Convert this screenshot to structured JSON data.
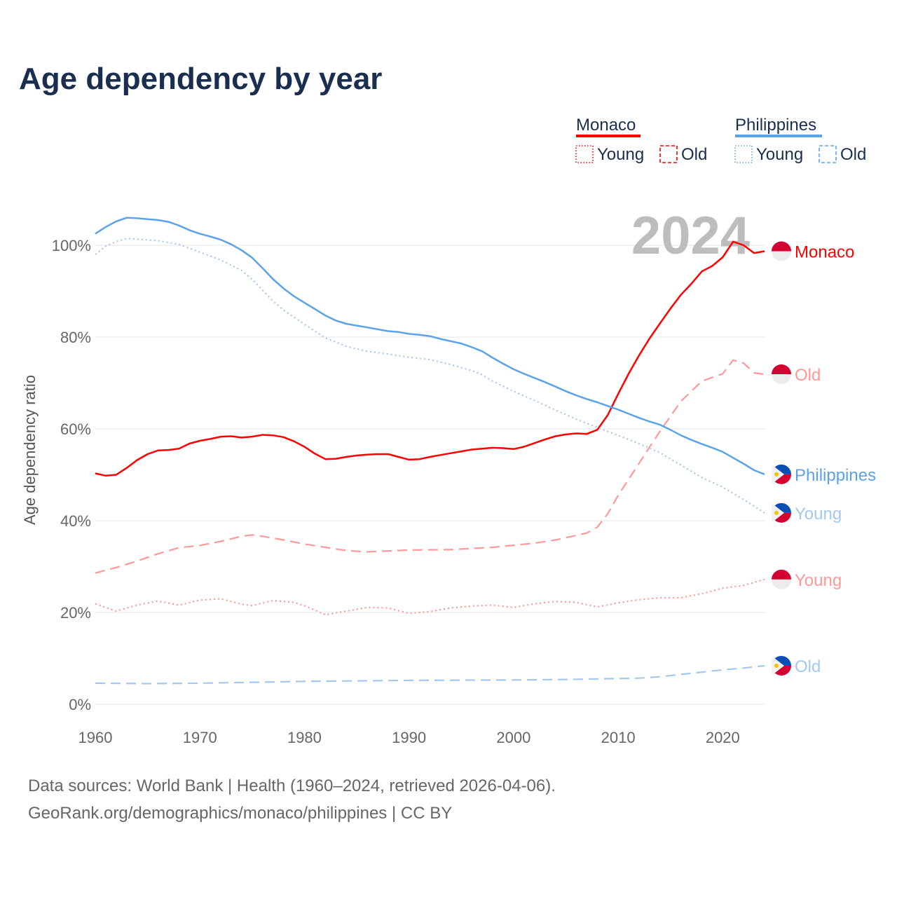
{
  "title": "Age dependency by year",
  "big_year": "2024",
  "legend": [
    {
      "country": "Monaco",
      "color": "#ff0000",
      "items": [
        "Young",
        "Old"
      ]
    },
    {
      "country": "Philippines",
      "color": "#5ba3e8",
      "items": [
        "Young",
        "Old"
      ]
    }
  ],
  "footer": {
    "line1": "Data sources: World Bank | Health (1960–2024, retrieved 2026-04-06).",
    "line2": "GeoRank.org/demographics/monaco/philippines | CC BY"
  },
  "chart_data": {
    "type": "line",
    "title": "Age dependency by year",
    "xlabel": "",
    "ylabel": "Age dependency ratio",
    "xlim": [
      1960,
      2024
    ],
    "ylim": [
      0,
      110
    ],
    "x_ticks": [
      "1960",
      "1970",
      "1980",
      "1990",
      "2000",
      "2010",
      "2020"
    ],
    "y_ticks": [
      "0%",
      "20%",
      "40%",
      "60%",
      "80%",
      "100%"
    ],
    "grid": true,
    "series": [
      {
        "name": "Monaco",
        "end_label": "Monaco",
        "color": "#ff0000",
        "style": "solid",
        "flag": "monaco",
        "points": [
          [
            1960,
            50.3
          ],
          [
            1961,
            49.8
          ],
          [
            1962,
            50
          ],
          [
            1963,
            51.5
          ],
          [
            1964,
            53.2
          ],
          [
            1965,
            54.5
          ],
          [
            1966,
            55.3
          ],
          [
            1967,
            55.4
          ],
          [
            1968,
            55.7
          ],
          [
            1969,
            56.8
          ],
          [
            1970,
            57.4
          ],
          [
            1971,
            57.8
          ],
          [
            1972,
            58.3
          ],
          [
            1973,
            58.4
          ],
          [
            1974,
            58.1
          ],
          [
            1975,
            58.3
          ],
          [
            1976,
            58.7
          ],
          [
            1977,
            58.6
          ],
          [
            1978,
            58.2
          ],
          [
            1979,
            57.3
          ],
          [
            1980,
            56.1
          ],
          [
            1981,
            54.6
          ],
          [
            1982,
            53.4
          ],
          [
            1983,
            53.5
          ],
          [
            1984,
            53.9
          ],
          [
            1985,
            54.2
          ],
          [
            1986,
            54.4
          ],
          [
            1987,
            54.5
          ],
          [
            1988,
            54.5
          ],
          [
            1989,
            53.9
          ],
          [
            1990,
            53.3
          ],
          [
            1991,
            53.4
          ],
          [
            1992,
            53.9
          ],
          [
            1993,
            54.3
          ],
          [
            1994,
            54.7
          ],
          [
            1995,
            55.1
          ],
          [
            1996,
            55.5
          ],
          [
            1997,
            55.7
          ],
          [
            1998,
            55.9
          ],
          [
            1999,
            55.8
          ],
          [
            2000,
            55.6
          ],
          [
            2001,
            56.1
          ],
          [
            2002,
            56.9
          ],
          [
            2003,
            57.7
          ],
          [
            2004,
            58.4
          ],
          [
            2005,
            58.8
          ],
          [
            2006,
            59
          ],
          [
            2007,
            58.9
          ],
          [
            2008,
            59.8
          ],
          [
            2009,
            63
          ],
          [
            2010,
            67.6
          ],
          [
            2011,
            72
          ],
          [
            2012,
            76
          ],
          [
            2013,
            79.7
          ],
          [
            2014,
            83
          ],
          [
            2015,
            86.2
          ],
          [
            2016,
            89.2
          ],
          [
            2017,
            91.6
          ],
          [
            2018,
            94.3
          ],
          [
            2019,
            95.5
          ],
          [
            2020,
            97.4
          ],
          [
            2021,
            100.8
          ],
          [
            2022,
            100
          ],
          [
            2023,
            98.3
          ],
          [
            2024,
            98.7
          ]
        ]
      },
      {
        "name": "Monaco Old",
        "end_label": "Old",
        "color": "#ff9999",
        "style": "dashed",
        "flag": "monaco",
        "points": [
          [
            1960,
            28.6
          ],
          [
            1962,
            29.8
          ],
          [
            1964,
            31.2
          ],
          [
            1966,
            32.8
          ],
          [
            1968,
            34.1
          ],
          [
            1970,
            34.6
          ],
          [
            1972,
            35.5
          ],
          [
            1974,
            36.6
          ],
          [
            1975,
            36.9
          ],
          [
            1976,
            36.6
          ],
          [
            1978,
            35.8
          ],
          [
            1980,
            34.9
          ],
          [
            1982,
            34.2
          ],
          [
            1984,
            33.5
          ],
          [
            1986,
            33.2
          ],
          [
            1988,
            33.4
          ],
          [
            1990,
            33.6
          ],
          [
            1994,
            33.7
          ],
          [
            1998,
            34.2
          ],
          [
            2002,
            35.1
          ],
          [
            2004,
            35.8
          ],
          [
            2006,
            36.8
          ],
          [
            2007,
            37.3
          ],
          [
            2008,
            38.6
          ],
          [
            2009,
            41.5
          ],
          [
            2010,
            45.5
          ],
          [
            2012,
            52.5
          ],
          [
            2014,
            59.5
          ],
          [
            2016,
            66
          ],
          [
            2018,
            70.4
          ],
          [
            2020,
            72
          ],
          [
            2021,
            75
          ],
          [
            2022,
            74.3
          ],
          [
            2023,
            72.2
          ],
          [
            2024,
            71.9
          ]
        ]
      },
      {
        "name": "Philippines",
        "end_label": "Philippines",
        "color": "#5ba3e8",
        "style": "solid",
        "flag": "philippines",
        "points": [
          [
            1960,
            102.5
          ],
          [
            1961,
            104
          ],
          [
            1962,
            105.2
          ],
          [
            1963,
            106
          ],
          [
            1964,
            105.9
          ],
          [
            1965,
            105.7
          ],
          [
            1966,
            105.5
          ],
          [
            1967,
            105.1
          ],
          [
            1968,
            104.3
          ],
          [
            1969,
            103.3
          ],
          [
            1970,
            102.5
          ],
          [
            1971,
            101.9
          ],
          [
            1972,
            101.2
          ],
          [
            1973,
            100.2
          ],
          [
            1974,
            98.9
          ],
          [
            1975,
            97.3
          ],
          [
            1976,
            95
          ],
          [
            1977,
            92.6
          ],
          [
            1978,
            90.6
          ],
          [
            1979,
            88.9
          ],
          [
            1980,
            87.5
          ],
          [
            1981,
            86.1
          ],
          [
            1982,
            84.7
          ],
          [
            1983,
            83.6
          ],
          [
            1984,
            82.9
          ],
          [
            1985,
            82.5
          ],
          [
            1986,
            82.1
          ],
          [
            1987,
            81.7
          ],
          [
            1988,
            81.3
          ],
          [
            1989,
            81.1
          ],
          [
            1990,
            80.7
          ],
          [
            1991,
            80.5
          ],
          [
            1992,
            80.2
          ],
          [
            1993,
            79.6
          ],
          [
            1994,
            79.1
          ],
          [
            1995,
            78.6
          ],
          [
            1996,
            77.8
          ],
          [
            1997,
            76.9
          ],
          [
            1998,
            75.5
          ],
          [
            1999,
            74.2
          ],
          [
            2000,
            73
          ],
          [
            2001,
            72
          ],
          [
            2002,
            71.1
          ],
          [
            2003,
            70.2
          ],
          [
            2004,
            69.2
          ],
          [
            2005,
            68.2
          ],
          [
            2006,
            67.3
          ],
          [
            2007,
            66.5
          ],
          [
            2008,
            65.8
          ],
          [
            2009,
            65
          ],
          [
            2010,
            64.2
          ],
          [
            2011,
            63.3
          ],
          [
            2012,
            62.4
          ],
          [
            2013,
            61.6
          ],
          [
            2014,
            60.9
          ],
          [
            2015,
            59.8
          ],
          [
            2016,
            58.6
          ],
          [
            2017,
            57.6
          ],
          [
            2018,
            56.7
          ],
          [
            2019,
            55.9
          ],
          [
            2020,
            55
          ],
          [
            2021,
            53.7
          ],
          [
            2022,
            52.4
          ],
          [
            2023,
            51
          ],
          [
            2024,
            50.1
          ]
        ]
      },
      {
        "name": "Philippines Young",
        "end_label": "Young",
        "color": "#a4c8f0",
        "style": "dotted",
        "flag": "philippines",
        "points": [
          [
            1960,
            98
          ],
          [
            1961,
            99.8
          ],
          [
            1962,
            100.8
          ],
          [
            1963,
            101.5
          ],
          [
            1966,
            101
          ],
          [
            1968,
            100.2
          ],
          [
            1970,
            98.5
          ],
          [
            1972,
            96.8
          ],
          [
            1974,
            94.5
          ],
          [
            1975,
            92.6
          ],
          [
            1976,
            90.2
          ],
          [
            1977,
            87.8
          ],
          [
            1978,
            85.9
          ],
          [
            1980,
            82.8
          ],
          [
            1982,
            79.8
          ],
          [
            1984,
            78
          ],
          [
            1986,
            76.9
          ],
          [
            1988,
            76.3
          ],
          [
            1990,
            75.6
          ],
          [
            1992,
            75.1
          ],
          [
            1994,
            74
          ],
          [
            1996,
            72.7
          ],
          [
            1997,
            71.8
          ],
          [
            1998,
            70.4
          ],
          [
            2000,
            68.2
          ],
          [
            2002,
            66.2
          ],
          [
            2004,
            64.1
          ],
          [
            2006,
            62.1
          ],
          [
            2008,
            60.3
          ],
          [
            2010,
            58.6
          ],
          [
            2012,
            56.8
          ],
          [
            2014,
            54.8
          ],
          [
            2016,
            52.1
          ],
          [
            2018,
            49.4
          ],
          [
            2020,
            47.3
          ],
          [
            2022,
            44.6
          ],
          [
            2024,
            41.7
          ]
        ]
      },
      {
        "name": "Monaco Young",
        "end_label": "Young",
        "color": "#ff9999",
        "style": "dotted",
        "flag": "monaco",
        "points": [
          [
            1960,
            21.9
          ],
          [
            1962,
            20.3
          ],
          [
            1964,
            21.6
          ],
          [
            1966,
            22.5
          ],
          [
            1968,
            21.6
          ],
          [
            1970,
            22.7
          ],
          [
            1972,
            23
          ],
          [
            1974,
            21.8
          ],
          [
            1975,
            21.5
          ],
          [
            1977,
            22.6
          ],
          [
            1979,
            22.2
          ],
          [
            1980,
            21.5
          ],
          [
            1982,
            19.5
          ],
          [
            1984,
            20.3
          ],
          [
            1986,
            21.1
          ],
          [
            1988,
            21
          ],
          [
            1990,
            19.8
          ],
          [
            1992,
            20.2
          ],
          [
            1994,
            21
          ],
          [
            1996,
            21.4
          ],
          [
            1998,
            21.6
          ],
          [
            2000,
            21.1
          ],
          [
            2002,
            21.9
          ],
          [
            2004,
            22.4
          ],
          [
            2006,
            22.2
          ],
          [
            2008,
            21.2
          ],
          [
            2010,
            22.1
          ],
          [
            2012,
            22.8
          ],
          [
            2014,
            23.2
          ],
          [
            2016,
            23.2
          ],
          [
            2018,
            24.1
          ],
          [
            2020,
            25.3
          ],
          [
            2022,
            25.9
          ],
          [
            2024,
            27.2
          ]
        ]
      },
      {
        "name": "Philippines Old",
        "end_label": "Old",
        "color": "#a4c8f0",
        "style": "dashed",
        "flag": "philippines",
        "points": [
          [
            1960,
            4.6
          ],
          [
            1965,
            4.5
          ],
          [
            1970,
            4.6
          ],
          [
            1975,
            4.8
          ],
          [
            1980,
            5
          ],
          [
            1990,
            5.2
          ],
          [
            2000,
            5.3
          ],
          [
            2005,
            5.4
          ],
          [
            2010,
            5.6
          ],
          [
            2012,
            5.7
          ],
          [
            2014,
            6
          ],
          [
            2016,
            6.5
          ],
          [
            2018,
            7
          ],
          [
            2020,
            7.5
          ],
          [
            2022,
            7.9
          ],
          [
            2024,
            8.4
          ]
        ]
      }
    ]
  }
}
